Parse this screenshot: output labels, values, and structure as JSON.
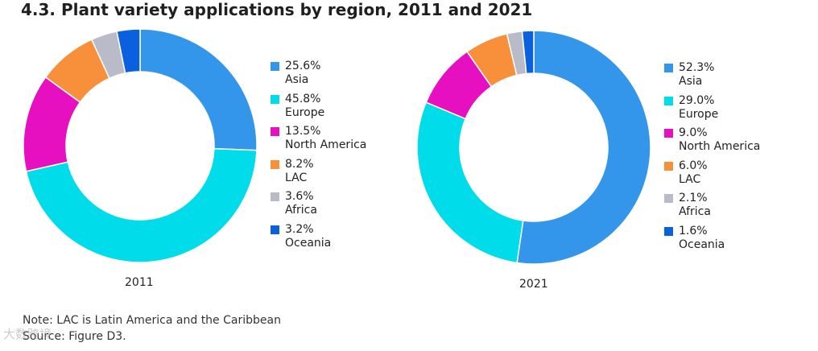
{
  "title": "4.3. Plant variety applications by region, 2011 and 2021",
  "chart_data": [
    {
      "type": "pie",
      "style": "donut",
      "label": "2011",
      "categories": [
        "Asia",
        "Europe",
        "North America",
        "LAC",
        "Africa",
        "Oceania"
      ],
      "values": [
        25.6,
        45.8,
        13.5,
        8.2,
        3.6,
        3.2
      ],
      "value_labels": [
        "25.6%",
        "45.8%",
        "13.5%",
        "8.2%",
        "3.6%",
        "3.2%"
      ],
      "colors": [
        "#3396ea",
        "#00dcea",
        "#e610c1",
        "#f78f3b",
        "#b9bbc9",
        "#0a60dd"
      ]
    },
    {
      "type": "pie",
      "style": "donut",
      "label": "2021",
      "categories": [
        "Asia",
        "Europe",
        "North America",
        "LAC",
        "Africa",
        "Oceania"
      ],
      "values": [
        52.3,
        29.0,
        9.0,
        6.0,
        2.1,
        1.6
      ],
      "value_labels": [
        "52.3%",
        "29.0%",
        "9.0%",
        "6.0%",
        "2.1%",
        "1.6%"
      ],
      "colors": [
        "#3396ea",
        "#00dcea",
        "#e610c1",
        "#f78f3b",
        "#b9bbc9",
        "#0a60dd"
      ]
    }
  ],
  "notes": {
    "note": "Note: LAC is Latin America and the Caribbean",
    "source": "Source: Figure D3."
  },
  "watermark": "大数跨境"
}
